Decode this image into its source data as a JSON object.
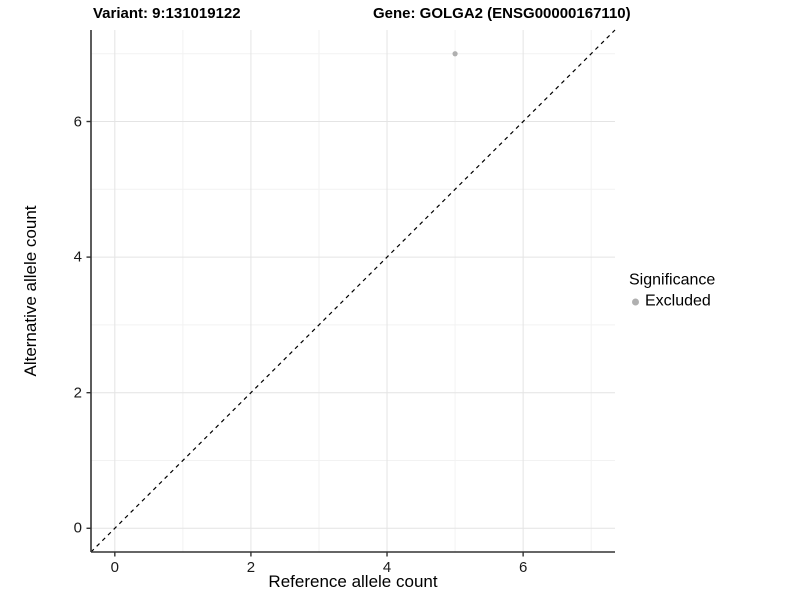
{
  "header": {
    "variant_title": "Variant: 9:131019122",
    "gene_title": "Gene: GOLGA2 (ENSG00000167110)"
  },
  "chart_data": {
    "type": "scatter",
    "title_left": "Variant: 9:131019122",
    "title_right": "Gene: GOLGA2 (ENSG00000167110)",
    "xlabel": "Reference allele count",
    "ylabel": "Alternative allele count",
    "xlim": [
      -0.35,
      7.35
    ],
    "ylim": [
      -0.35,
      7.35
    ],
    "x_major_ticks": [
      0,
      2,
      4,
      6
    ],
    "y_major_ticks": [
      0,
      2,
      4,
      6
    ],
    "x_minor_ticks": [
      1,
      3,
      5,
      7
    ],
    "y_minor_ticks": [
      1,
      3,
      5,
      7
    ],
    "grid": true,
    "legend_position": "right",
    "abline": {
      "slope": 1,
      "intercept": 0,
      "style": "dashed",
      "color": "#000000"
    },
    "series": [
      {
        "name": "Excluded",
        "color": "#b0b0b0",
        "points": [
          {
            "x": 5,
            "y": 7
          }
        ]
      }
    ]
  },
  "legend": {
    "title": "Significance",
    "entries": [
      {
        "label": "Excluded",
        "color": "#b0b0b0"
      }
    ]
  },
  "colors": {
    "grid_major": "#e4e4e4",
    "grid_minor": "#f2f2f2",
    "axis_line": "#333333",
    "tick_mark": "#333333",
    "point": "#b0b0b0"
  }
}
